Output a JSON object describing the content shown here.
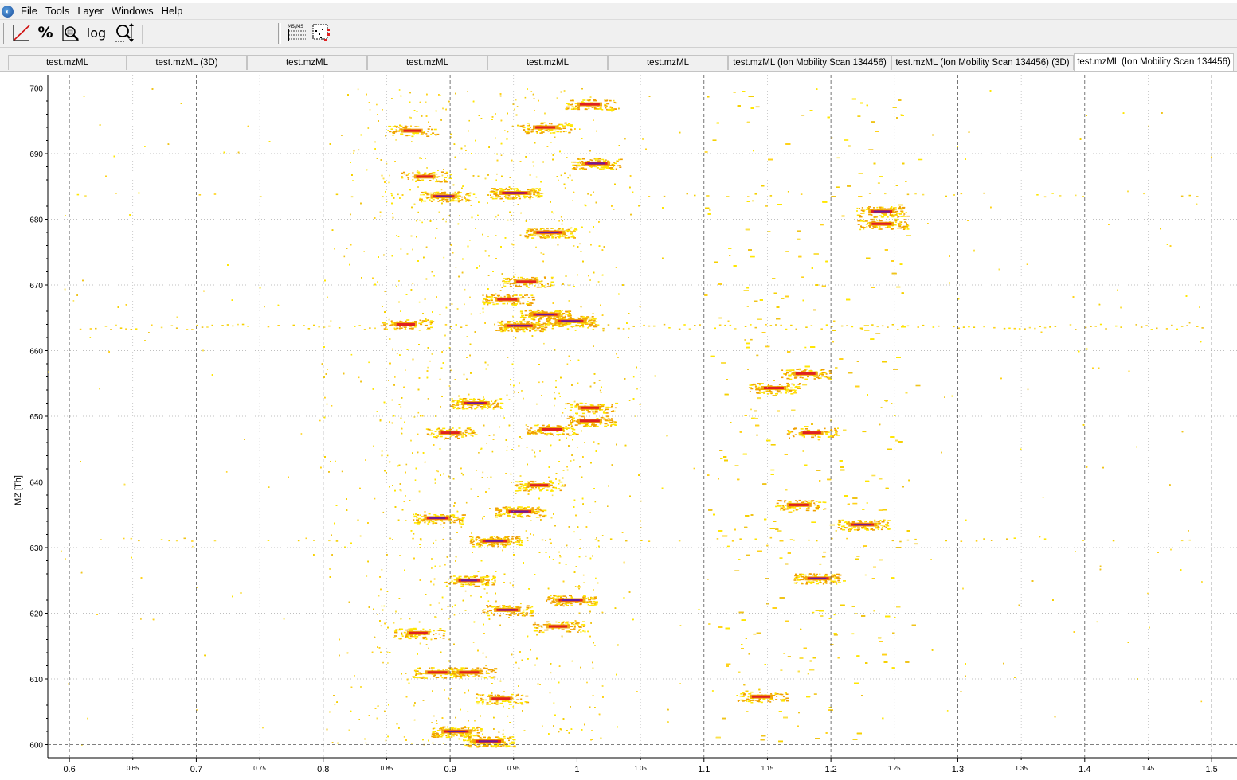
{
  "menu": {
    "items": [
      "File",
      "Tools",
      "Layer",
      "Windows",
      "Help"
    ]
  },
  "toolbar": {
    "buttons": [
      {
        "name": "linear-intensity-icon"
      },
      {
        "name": "percentage-intensity-icon",
        "label": "%"
      },
      {
        "name": "snap-to-max-intensity-icon"
      },
      {
        "name": "log-intensity-button",
        "label": "log"
      },
      {
        "name": "axis-zoom-icon"
      },
      {
        "name": "msms-icon",
        "label": "MS/MS"
      },
      {
        "name": "projections-icon"
      }
    ]
  },
  "tabs": [
    {
      "label": "test.mzML",
      "active": false
    },
    {
      "label": "test.mzML (3D)",
      "active": false
    },
    {
      "label": "test.mzML",
      "active": false
    },
    {
      "label": "test.mzML",
      "active": false
    },
    {
      "label": "test.mzML",
      "active": false
    },
    {
      "label": "test.mzML",
      "active": false
    },
    {
      "label": "test.mzML (Ion Mobility Scan 134456)",
      "active": false
    },
    {
      "label": "test.mzML (Ion Mobility Scan 134456) (3D)",
      "active": false
    },
    {
      "label": "test.mzML (Ion Mobility Scan 134456)",
      "active": true
    }
  ],
  "colors": {
    "low": "#ffe600",
    "mid": "#f0a000",
    "high": "#e02020",
    "peak": "#6a1a9a"
  },
  "chart_data": {
    "type": "heatmap",
    "ylabel": "MZ [Th]",
    "xlabel": "",
    "xlim": [
      0.583,
      1.52
    ],
    "ylim": [
      598,
      702
    ],
    "x_ticks_major": [
      "0.6",
      "0.7",
      "0.8",
      "0.9",
      "1",
      "1.1",
      "1.2",
      "1.3",
      "1.4",
      "1.5"
    ],
    "x_ticks_minor": [
      "0.65",
      "0.75",
      "0.85",
      "0.95",
      "1.05",
      "1.15",
      "1.25",
      "1.35",
      "1.45"
    ],
    "y_ticks": [
      "600",
      "610",
      "620",
      "630",
      "640",
      "650",
      "660",
      "670",
      "680",
      "690",
      "700"
    ],
    "grid": true,
    "peaks": [
      {
        "x": 0.951,
        "y": 684.0,
        "intensity": 1.0
      },
      {
        "x": 0.978,
        "y": 678.0,
        "intensity": 1.0
      },
      {
        "x": 1.015,
        "y": 688.5,
        "intensity": 0.8
      },
      {
        "x": 0.975,
        "y": 694.0,
        "intensity": 0.6
      },
      {
        "x": 1.01,
        "y": 697.5,
        "intensity": 0.6
      },
      {
        "x": 0.895,
        "y": 683.5,
        "intensity": 0.7
      },
      {
        "x": 0.955,
        "y": 663.8,
        "intensity": 1.0
      },
      {
        "x": 0.995,
        "y": 664.5,
        "intensity": 1.0
      },
      {
        "x": 0.975,
        "y": 665.5,
        "intensity": 0.9
      },
      {
        "x": 0.865,
        "y": 664.0,
        "intensity": 0.5
      },
      {
        "x": 0.92,
        "y": 652.0,
        "intensity": 0.8
      },
      {
        "x": 0.935,
        "y": 631.0,
        "intensity": 0.9
      },
      {
        "x": 0.955,
        "y": 635.5,
        "intensity": 0.8
      },
      {
        "x": 0.89,
        "y": 634.5,
        "intensity": 0.7
      },
      {
        "x": 0.995,
        "y": 622.0,
        "intensity": 0.9
      },
      {
        "x": 0.915,
        "y": 625.0,
        "intensity": 0.7
      },
      {
        "x": 0.945,
        "y": 620.5,
        "intensity": 0.7
      },
      {
        "x": 0.905,
        "y": 602.0,
        "intensity": 0.9
      },
      {
        "x": 0.93,
        "y": 600.5,
        "intensity": 1.0
      },
      {
        "x": 0.89,
        "y": 611.0,
        "intensity": 0.6
      },
      {
        "x": 0.915,
        "y": 611.0,
        "intensity": 0.6
      },
      {
        "x": 1.24,
        "y": 681.2,
        "intensity": 0.7
      },
      {
        "x": 1.24,
        "y": 679.3,
        "intensity": 0.6
      },
      {
        "x": 1.225,
        "y": 633.5,
        "intensity": 0.8
      },
      {
        "x": 1.19,
        "y": 625.3,
        "intensity": 0.7
      },
      {
        "x": 1.175,
        "y": 636.5,
        "intensity": 0.6
      },
      {
        "x": 1.18,
        "y": 656.5,
        "intensity": 0.6
      },
      {
        "x": 1.155,
        "y": 654.3,
        "intensity": 0.6
      },
      {
        "x": 1.185,
        "y": 647.5,
        "intensity": 0.5
      },
      {
        "x": 1.145,
        "y": 607.3,
        "intensity": 0.5
      },
      {
        "x": 0.96,
        "y": 670.5,
        "intensity": 0.6
      },
      {
        "x": 0.945,
        "y": 667.8,
        "intensity": 0.6
      },
      {
        "x": 0.87,
        "y": 693.5,
        "intensity": 0.4
      },
      {
        "x": 0.88,
        "y": 686.5,
        "intensity": 0.4
      },
      {
        "x": 0.98,
        "y": 648.0,
        "intensity": 0.6
      },
      {
        "x": 1.01,
        "y": 649.3,
        "intensity": 0.6
      },
      {
        "x": 1.01,
        "y": 651.3,
        "intensity": 0.5
      },
      {
        "x": 0.9,
        "y": 647.5,
        "intensity": 0.5
      },
      {
        "x": 0.97,
        "y": 639.5,
        "intensity": 0.5
      },
      {
        "x": 0.985,
        "y": 618.0,
        "intensity": 0.5
      },
      {
        "x": 0.875,
        "y": 617.0,
        "intensity": 0.5
      },
      {
        "x": 0.94,
        "y": 607.0,
        "intensity": 0.5
      }
    ]
  }
}
